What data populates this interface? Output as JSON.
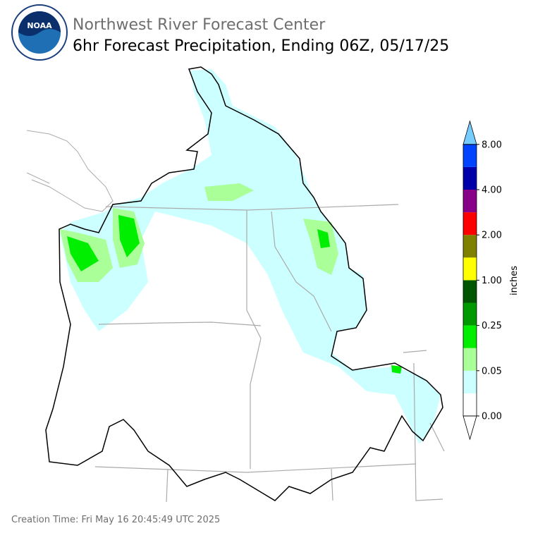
{
  "header": {
    "title": "Northwest River Forecast Center",
    "subtitle": "6hr Forecast Precipitation, Ending 06Z, 05/17/25",
    "logo_text": "NOAA"
  },
  "legend": {
    "label": "inches",
    "ticks": [
      "0.00",
      "0.05",
      "0.25",
      "1.00",
      "2.00",
      "4.00",
      "8.00"
    ],
    "colors": [
      "#ffffff",
      "#ccffff",
      "#aaff99",
      "#00ee00",
      "#009900",
      "#005500",
      "#ffff00",
      "#808000",
      "#ff0000",
      "#880088",
      "#0000aa",
      "#0044ff"
    ],
    "under_color": "#ffffff",
    "over_color": "#77ccff"
  },
  "footer": {
    "creation_time": "Creation Time: Fri May 16 20:45:49 UTC 2025"
  }
}
